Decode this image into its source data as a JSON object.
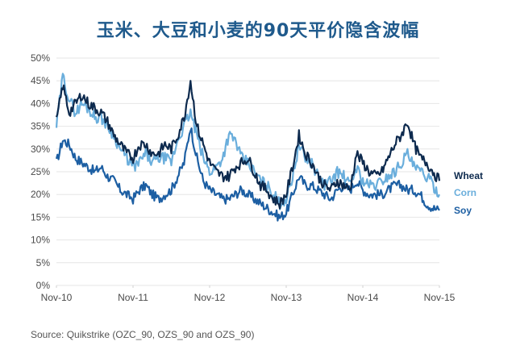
{
  "title": "玉米、大豆和小麦的90天平价隐含波幅",
  "source": "Source: Quikstrike (OZC_90, OZS_90 and OZS_90)",
  "colors": {
    "wheat": "#0d2a4e",
    "corn": "#6aaedc",
    "soy": "#1d5fa3",
    "grid": "#e6e6e6",
    "title": "#1f5a8c"
  },
  "chart_data": {
    "type": "line",
    "title": "玉米、大豆和小麦的90天平价隐含波幅",
    "xlabel": "",
    "ylabel": "",
    "ylim": [
      0,
      50
    ],
    "yticks": [
      "0%",
      "5%",
      "10%",
      "15%",
      "20%",
      "25%",
      "30%",
      "35%",
      "40%",
      "45%",
      "50%"
    ],
    "xticks": [
      "Nov-10",
      "Nov-11",
      "Nov-12",
      "Nov-13",
      "Nov-14",
      "Nov-15"
    ],
    "grid": true,
    "legend_position": "right, inline at line ends",
    "x": [
      "Nov-10",
      "Dec-10",
      "Jan-11",
      "Feb-11",
      "Mar-11",
      "Apr-11",
      "May-11",
      "Jun-11",
      "Jul-11",
      "Aug-11",
      "Sep-11",
      "Oct-11",
      "Nov-11",
      "Dec-11",
      "Jan-12",
      "Feb-12",
      "Mar-12",
      "Apr-12",
      "May-12",
      "Jun-12",
      "Jul-12",
      "Aug-12",
      "Sep-12",
      "Oct-12",
      "Nov-12",
      "Dec-12",
      "Jan-13",
      "Feb-13",
      "Mar-13",
      "Apr-13",
      "May-13",
      "Jun-13",
      "Jul-13",
      "Aug-13",
      "Sep-13",
      "Oct-13",
      "Nov-13",
      "Dec-13",
      "Jan-14",
      "Feb-14",
      "Mar-14",
      "Apr-14",
      "May-14",
      "Jun-14",
      "Jul-14",
      "Aug-14",
      "Sep-14",
      "Oct-14",
      "Nov-14",
      "Dec-14",
      "Jan-15",
      "Feb-15",
      "Mar-15",
      "Apr-15",
      "May-15",
      "Jun-15",
      "Jul-15",
      "Aug-15",
      "Sep-15",
      "Oct-15",
      "Nov-15"
    ],
    "series": [
      {
        "name": "Wheat",
        "values": [
          36,
          44,
          38,
          40,
          42,
          40,
          39,
          38,
          36,
          33,
          31,
          29,
          28,
          31,
          31,
          29,
          29,
          31,
          30,
          33,
          37,
          45,
          35,
          31,
          27,
          25,
          24,
          24,
          26,
          27,
          28,
          25,
          22,
          21,
          19,
          18,
          20,
          26,
          33,
          29,
          27,
          24,
          22,
          21,
          23,
          22,
          21,
          29,
          27,
          25,
          24,
          25,
          28,
          31,
          33,
          36,
          31,
          28,
          27,
          25,
          23
        ]
      },
      {
        "name": "Corn",
        "values": [
          35,
          46,
          41,
          38,
          40,
          39,
          37,
          37,
          35,
          33,
          30,
          28,
          26,
          27,
          29,
          27,
          28,
          28,
          27,
          32,
          35,
          38,
          33,
          28,
          25,
          26,
          28,
          33,
          32,
          28,
          27,
          25,
          23,
          22,
          20,
          18,
          19,
          24,
          31,
          28,
          27,
          24,
          22,
          23,
          25,
          24,
          22,
          26,
          23,
          22,
          22,
          23,
          24,
          25,
          27,
          29,
          26,
          25,
          24,
          22,
          20
        ]
      },
      {
        "name": "Soy",
        "values": [
          27,
          32,
          31,
          28,
          27,
          26,
          25,
          26,
          24,
          23,
          21,
          20,
          19,
          21,
          22,
          20,
          19,
          20,
          21,
          24,
          27,
          35,
          28,
          23,
          21,
          20,
          19,
          19,
          20,
          21,
          20,
          19,
          18,
          17,
          16,
          15,
          16,
          20,
          24,
          22,
          22,
          21,
          20,
          19,
          21,
          22,
          21,
          23,
          21,
          20,
          20,
          20,
          21,
          22,
          22,
          21,
          21,
          20,
          18,
          17,
          16.5
        ]
      }
    ]
  },
  "legend": {
    "wheat": "Wheat",
    "corn": "Corn",
    "soy": "Soy"
  }
}
